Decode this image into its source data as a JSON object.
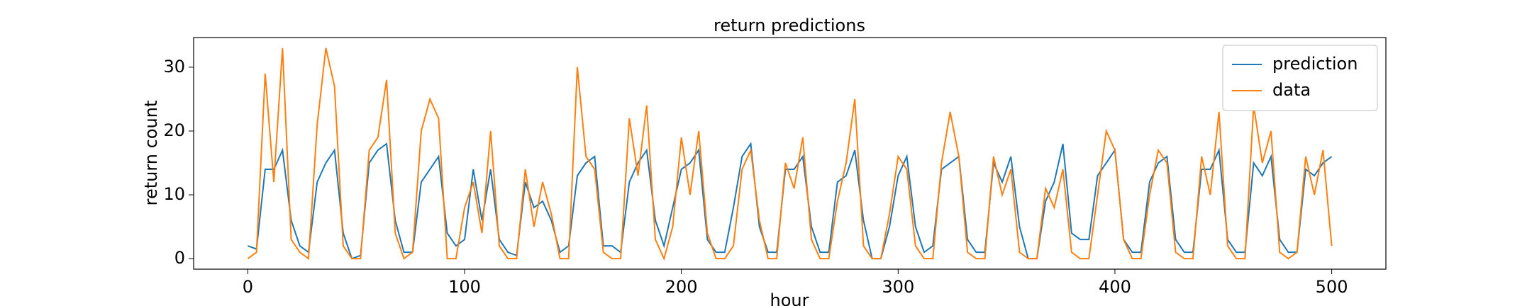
{
  "chart_data": {
    "type": "line",
    "title": "return predictions",
    "x_label": "hour",
    "y_label": "return count",
    "x": [
      0,
      4,
      8,
      12,
      16,
      20,
      24,
      28,
      32,
      36,
      40,
      44,
      48,
      52,
      56,
      60,
      64,
      68,
      72,
      76,
      80,
      84,
      88,
      92,
      96,
      100,
      104,
      108,
      112,
      116,
      120,
      124,
      128,
      132,
      136,
      140,
      144,
      148,
      152,
      156,
      160,
      164,
      168,
      172,
      176,
      180,
      184,
      188,
      192,
      196,
      200,
      204,
      208,
      212,
      216,
      220,
      224,
      228,
      232,
      236,
      240,
      244,
      248,
      252,
      256,
      260,
      264,
      268,
      272,
      276,
      280,
      284,
      288,
      292,
      296,
      300,
      304,
      308,
      312,
      316,
      320,
      324,
      328,
      332,
      336,
      340,
      344,
      348,
      352,
      356,
      360,
      364,
      368,
      372,
      376,
      380,
      384,
      388,
      392,
      396,
      400,
      404,
      408,
      412,
      416,
      420,
      424,
      428,
      432,
      436,
      440,
      444,
      448,
      452,
      456,
      460,
      464,
      468,
      472,
      476,
      480,
      484,
      488,
      492,
      496,
      500
    ],
    "series": [
      {
        "name": "prediction",
        "color": "#1f77b4",
        "values": [
          2,
          1.5,
          14,
          14,
          17,
          6,
          2,
          1,
          12,
          15,
          17,
          4,
          0,
          0.5,
          15,
          17,
          18,
          6,
          1,
          1,
          12,
          14,
          16,
          4,
          2,
          3,
          14,
          6,
          14,
          3,
          1,
          0.5,
          12,
          8,
          9,
          6,
          1,
          2,
          13,
          15,
          16,
          2,
          2,
          1,
          12,
          15,
          17,
          6,
          2,
          8,
          14,
          15,
          17,
          3,
          1,
          1,
          8,
          16,
          18,
          5,
          1,
          1,
          14,
          14,
          16,
          5,
          1,
          1,
          12,
          13,
          17,
          6,
          0,
          0,
          5,
          13,
          16,
          5,
          1,
          2,
          14,
          15,
          16,
          3,
          1,
          1,
          15,
          12,
          16,
          5,
          0,
          0,
          9,
          12,
          18,
          4,
          3,
          3,
          13,
          15,
          17,
          3,
          1,
          1,
          12,
          15,
          16,
          3,
          1,
          1,
          14,
          14,
          17,
          3,
          1,
          1,
          15,
          13,
          16,
          3,
          1,
          1,
          14,
          13,
          15,
          16
        ]
      },
      {
        "name": "data",
        "color": "#ff7f0e",
        "values": [
          0,
          1,
          29,
          12,
          33,
          3,
          1,
          0,
          21,
          33,
          27,
          2,
          0,
          0,
          17,
          19,
          28,
          4,
          0,
          1,
          20,
          25,
          22,
          0,
          0,
          8,
          12,
          4,
          20,
          2,
          0,
          0,
          14,
          5,
          12,
          7,
          0,
          0,
          30,
          16,
          14,
          1,
          0,
          0,
          22,
          13,
          24,
          3,
          0,
          5,
          19,
          10,
          20,
          4,
          0,
          0,
          2,
          14,
          17,
          6,
          0,
          0,
          15,
          11,
          19,
          3,
          0,
          0,
          9,
          15,
          25,
          2,
          0,
          0,
          7,
          16,
          14,
          2,
          0,
          0,
          15,
          23,
          16,
          1,
          0,
          0,
          16,
          10,
          14,
          1,
          0,
          0,
          11,
          8,
          14,
          1,
          0,
          0,
          10,
          20,
          17,
          3,
          0,
          0,
          10,
          17,
          15,
          1,
          0,
          0,
          16,
          10,
          23,
          2,
          0,
          0,
          24,
          15,
          20,
          1,
          0,
          1,
          16,
          10,
          17,
          2
        ]
      }
    ],
    "xlim": [
      -25,
      525
    ],
    "ylim": [
      -1.65,
      34.65
    ],
    "xticks": [
      0,
      100,
      200,
      300,
      400,
      500
    ],
    "yticks": [
      0,
      10,
      20,
      30
    ],
    "legend": "upper right"
  }
}
